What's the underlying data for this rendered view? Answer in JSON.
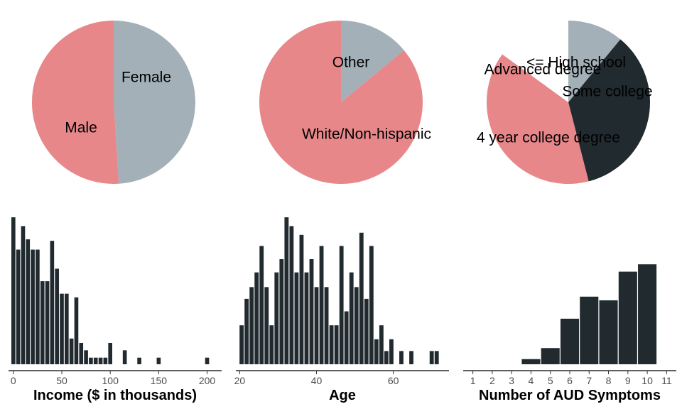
{
  "colors": {
    "red": "#e8878a",
    "gray": "#a3b0b8",
    "dark": "#212a2e"
  },
  "chart_data": [
    {
      "type": "pie",
      "slices": [
        {
          "label": "Female",
          "value": 49,
          "color": "#a3b0b8"
        },
        {
          "label": "Male",
          "value": 51,
          "color": "#e8878a"
        }
      ]
    },
    {
      "type": "pie",
      "slices": [
        {
          "label": "Other",
          "value": 14,
          "color": "#a3b0b8"
        },
        {
          "label": "White/Non-hispanic",
          "value": 86,
          "color": "#e8878a"
        }
      ]
    },
    {
      "type": "pie",
      "slices": [
        {
          "label": "<= High school",
          "value": 11,
          "color": "#a3b0b8"
        },
        {
          "label": "Some college",
          "value": 35,
          "color": "#212a2e"
        },
        {
          "label": "4 year college degree",
          "value": 39,
          "color": "#e8878a"
        },
        {
          "label": "Advanced degree",
          "value": 15,
          "color": "#ffffff"
        }
      ]
    },
    {
      "type": "bar",
      "xlabel": "Income ($ in thousands)",
      "xlim": [
        -5,
        215
      ],
      "ylim": [
        0,
        20
      ],
      "xticks": [
        0,
        50,
        100,
        150,
        200
      ],
      "binwidth": 5,
      "bins": [
        {
          "x": 0,
          "count": 20
        },
        {
          "x": 5,
          "count": 15.6
        },
        {
          "x": 10,
          "count": 18.8
        },
        {
          "x": 15,
          "count": 17
        },
        {
          "x": 20,
          "count": 15.6
        },
        {
          "x": 25,
          "count": 15.6
        },
        {
          "x": 30,
          "count": 11.3
        },
        {
          "x": 35,
          "count": 11.3
        },
        {
          "x": 40,
          "count": 16.8
        },
        {
          "x": 45,
          "count": 13
        },
        {
          "x": 50,
          "count": 9.6
        },
        {
          "x": 55,
          "count": 9.6
        },
        {
          "x": 60,
          "count": 3.5
        },
        {
          "x": 65,
          "count": 9.1
        },
        {
          "x": 70,
          "count": 2.9
        },
        {
          "x": 75,
          "count": 1.9
        },
        {
          "x": 80,
          "count": 0.9
        },
        {
          "x": 85,
          "count": 0.9
        },
        {
          "x": 90,
          "count": 0.9
        },
        {
          "x": 95,
          "count": 0.9
        },
        {
          "x": 100,
          "count": 2.9
        },
        {
          "x": 115,
          "count": 1.9
        },
        {
          "x": 130,
          "count": 0.9
        },
        {
          "x": 150,
          "count": 0.9
        },
        {
          "x": 200,
          "count": 0.9
        }
      ]
    },
    {
      "type": "bar",
      "xlabel": "Age",
      "xlim": [
        19,
        74.5
      ],
      "ylim": [
        0,
        20
      ],
      "xticks": [
        20,
        40,
        60
      ],
      "binwidth": 1.3,
      "bins": [
        {
          "x": 20.5,
          "count": 5.3
        },
        {
          "x": 21.8,
          "count": 8.9
        },
        {
          "x": 23.1,
          "count": 10.5
        },
        {
          "x": 24.4,
          "count": 12.5
        },
        {
          "x": 25.7,
          "count": 16.1
        },
        {
          "x": 27.0,
          "count": 10.5
        },
        {
          "x": 28.3,
          "count": 5.3
        },
        {
          "x": 29.6,
          "count": 12.5
        },
        {
          "x": 30.9,
          "count": 14.3
        },
        {
          "x": 32.2,
          "count": 20
        },
        {
          "x": 33.5,
          "count": 18.8
        },
        {
          "x": 34.8,
          "count": 12.5
        },
        {
          "x": 36.1,
          "count": 17.6
        },
        {
          "x": 37.4,
          "count": 12.5
        },
        {
          "x": 38.7,
          "count": 14.3
        },
        {
          "x": 40.0,
          "count": 10.5
        },
        {
          "x": 41.3,
          "count": 16.1
        },
        {
          "x": 42.6,
          "count": 10.5
        },
        {
          "x": 43.9,
          "count": 5.3
        },
        {
          "x": 45.2,
          "count": 5.3
        },
        {
          "x": 46.5,
          "count": 16.1
        },
        {
          "x": 47.8,
          "count": 7.2
        },
        {
          "x": 49.1,
          "count": 12.5
        },
        {
          "x": 50.4,
          "count": 10.5
        },
        {
          "x": 51.7,
          "count": 17.9
        },
        {
          "x": 53.0,
          "count": 8.9
        },
        {
          "x": 54.3,
          "count": 16.1
        },
        {
          "x": 55.6,
          "count": 3.4
        },
        {
          "x": 56.9,
          "count": 5.3
        },
        {
          "x": 58.2,
          "count": 1.8
        },
        {
          "x": 59.5,
          "count": 3.4
        },
        {
          "x": 62.1,
          "count": 1.8
        },
        {
          "x": 64.7,
          "count": 1.8
        },
        {
          "x": 70.0,
          "count": 1.8
        },
        {
          "x": 71.3,
          "count": 1.8
        }
      ]
    },
    {
      "type": "bar",
      "xlabel": "Number of AUD Symptoms",
      "xlim": [
        0.5,
        11.5
      ],
      "ylim": [
        0,
        20
      ],
      "xticks": [
        1,
        2,
        3,
        4,
        5,
        6,
        7,
        8,
        9,
        10,
        11
      ],
      "binwidth": 1,
      "bins": [
        {
          "x": 4,
          "count": 0.7
        },
        {
          "x": 5,
          "count": 2.2
        },
        {
          "x": 6,
          "count": 6.2
        },
        {
          "x": 7,
          "count": 9.2
        },
        {
          "x": 8,
          "count": 8.7
        },
        {
          "x": 9,
          "count": 12.6
        },
        {
          "x": 10,
          "count": 13.6
        }
      ]
    }
  ]
}
